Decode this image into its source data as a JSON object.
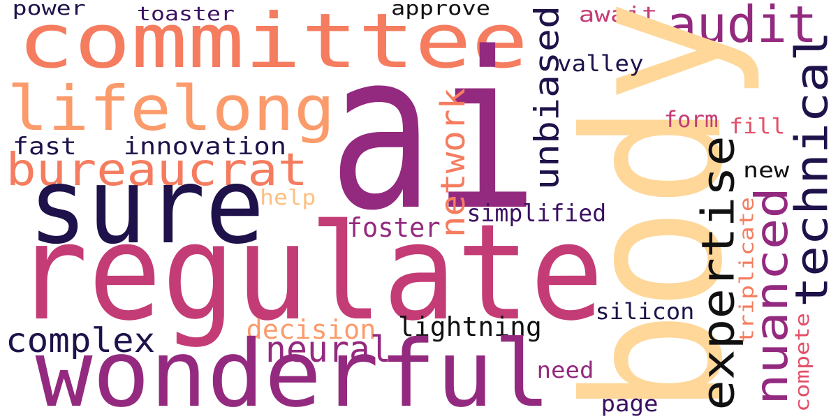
{
  "palette": {
    "c1": "#1f124a",
    "c2": "#3b1062",
    "c3": "#932a7f",
    "c4": "#c43c75",
    "c5": "#e3506a",
    "c6": "#f57c5f",
    "c7": "#fb9b6b",
    "c8": "#fdc083",
    "c9": "#fed799",
    "c10": "#111111"
  },
  "words": [
    {
      "text": "power",
      "weight": 1
    },
    {
      "text": "toaster",
      "weight": 1
    },
    {
      "text": "approve",
      "weight": 1
    },
    {
      "text": "await",
      "weight": 1
    },
    {
      "text": "committee",
      "weight": 4
    },
    {
      "text": "audit",
      "weight": 2
    },
    {
      "text": "lifelong",
      "weight": 3
    },
    {
      "text": "ai",
      "weight": 10
    },
    {
      "text": "body",
      "weight": 9
    },
    {
      "text": "unbiased",
      "weight": 2
    },
    {
      "text": "valley",
      "weight": 1
    },
    {
      "text": "technical",
      "weight": 2
    },
    {
      "text": "fast",
      "weight": 1
    },
    {
      "text": "innovation",
      "weight": 1
    },
    {
      "text": "bureaucrat",
      "weight": 2
    },
    {
      "text": "network",
      "weight": 2
    },
    {
      "text": "form",
      "weight": 1
    },
    {
      "text": "fill",
      "weight": 1
    },
    {
      "text": "expertise",
      "weight": 3
    },
    {
      "text": "sure",
      "weight": 5
    },
    {
      "text": "new",
      "weight": 1
    },
    {
      "text": "help",
      "weight": 1
    },
    {
      "text": "nuanced",
      "weight": 2
    },
    {
      "text": "simplified",
      "weight": 1
    },
    {
      "text": "foster",
      "weight": 1
    },
    {
      "text": "triplicate",
      "weight": 1
    },
    {
      "text": "regulate",
      "weight": 6
    },
    {
      "text": "silicon",
      "weight": 1
    },
    {
      "text": "decision",
      "weight": 1
    },
    {
      "text": "lightning",
      "weight": 1
    },
    {
      "text": "complex",
      "weight": 1
    },
    {
      "text": "neural",
      "weight": 2
    },
    {
      "text": "compete",
      "weight": 1
    },
    {
      "text": "wonderful",
      "weight": 5
    },
    {
      "text": "need",
      "weight": 1
    },
    {
      "text": "page",
      "weight": 1
    }
  ]
}
